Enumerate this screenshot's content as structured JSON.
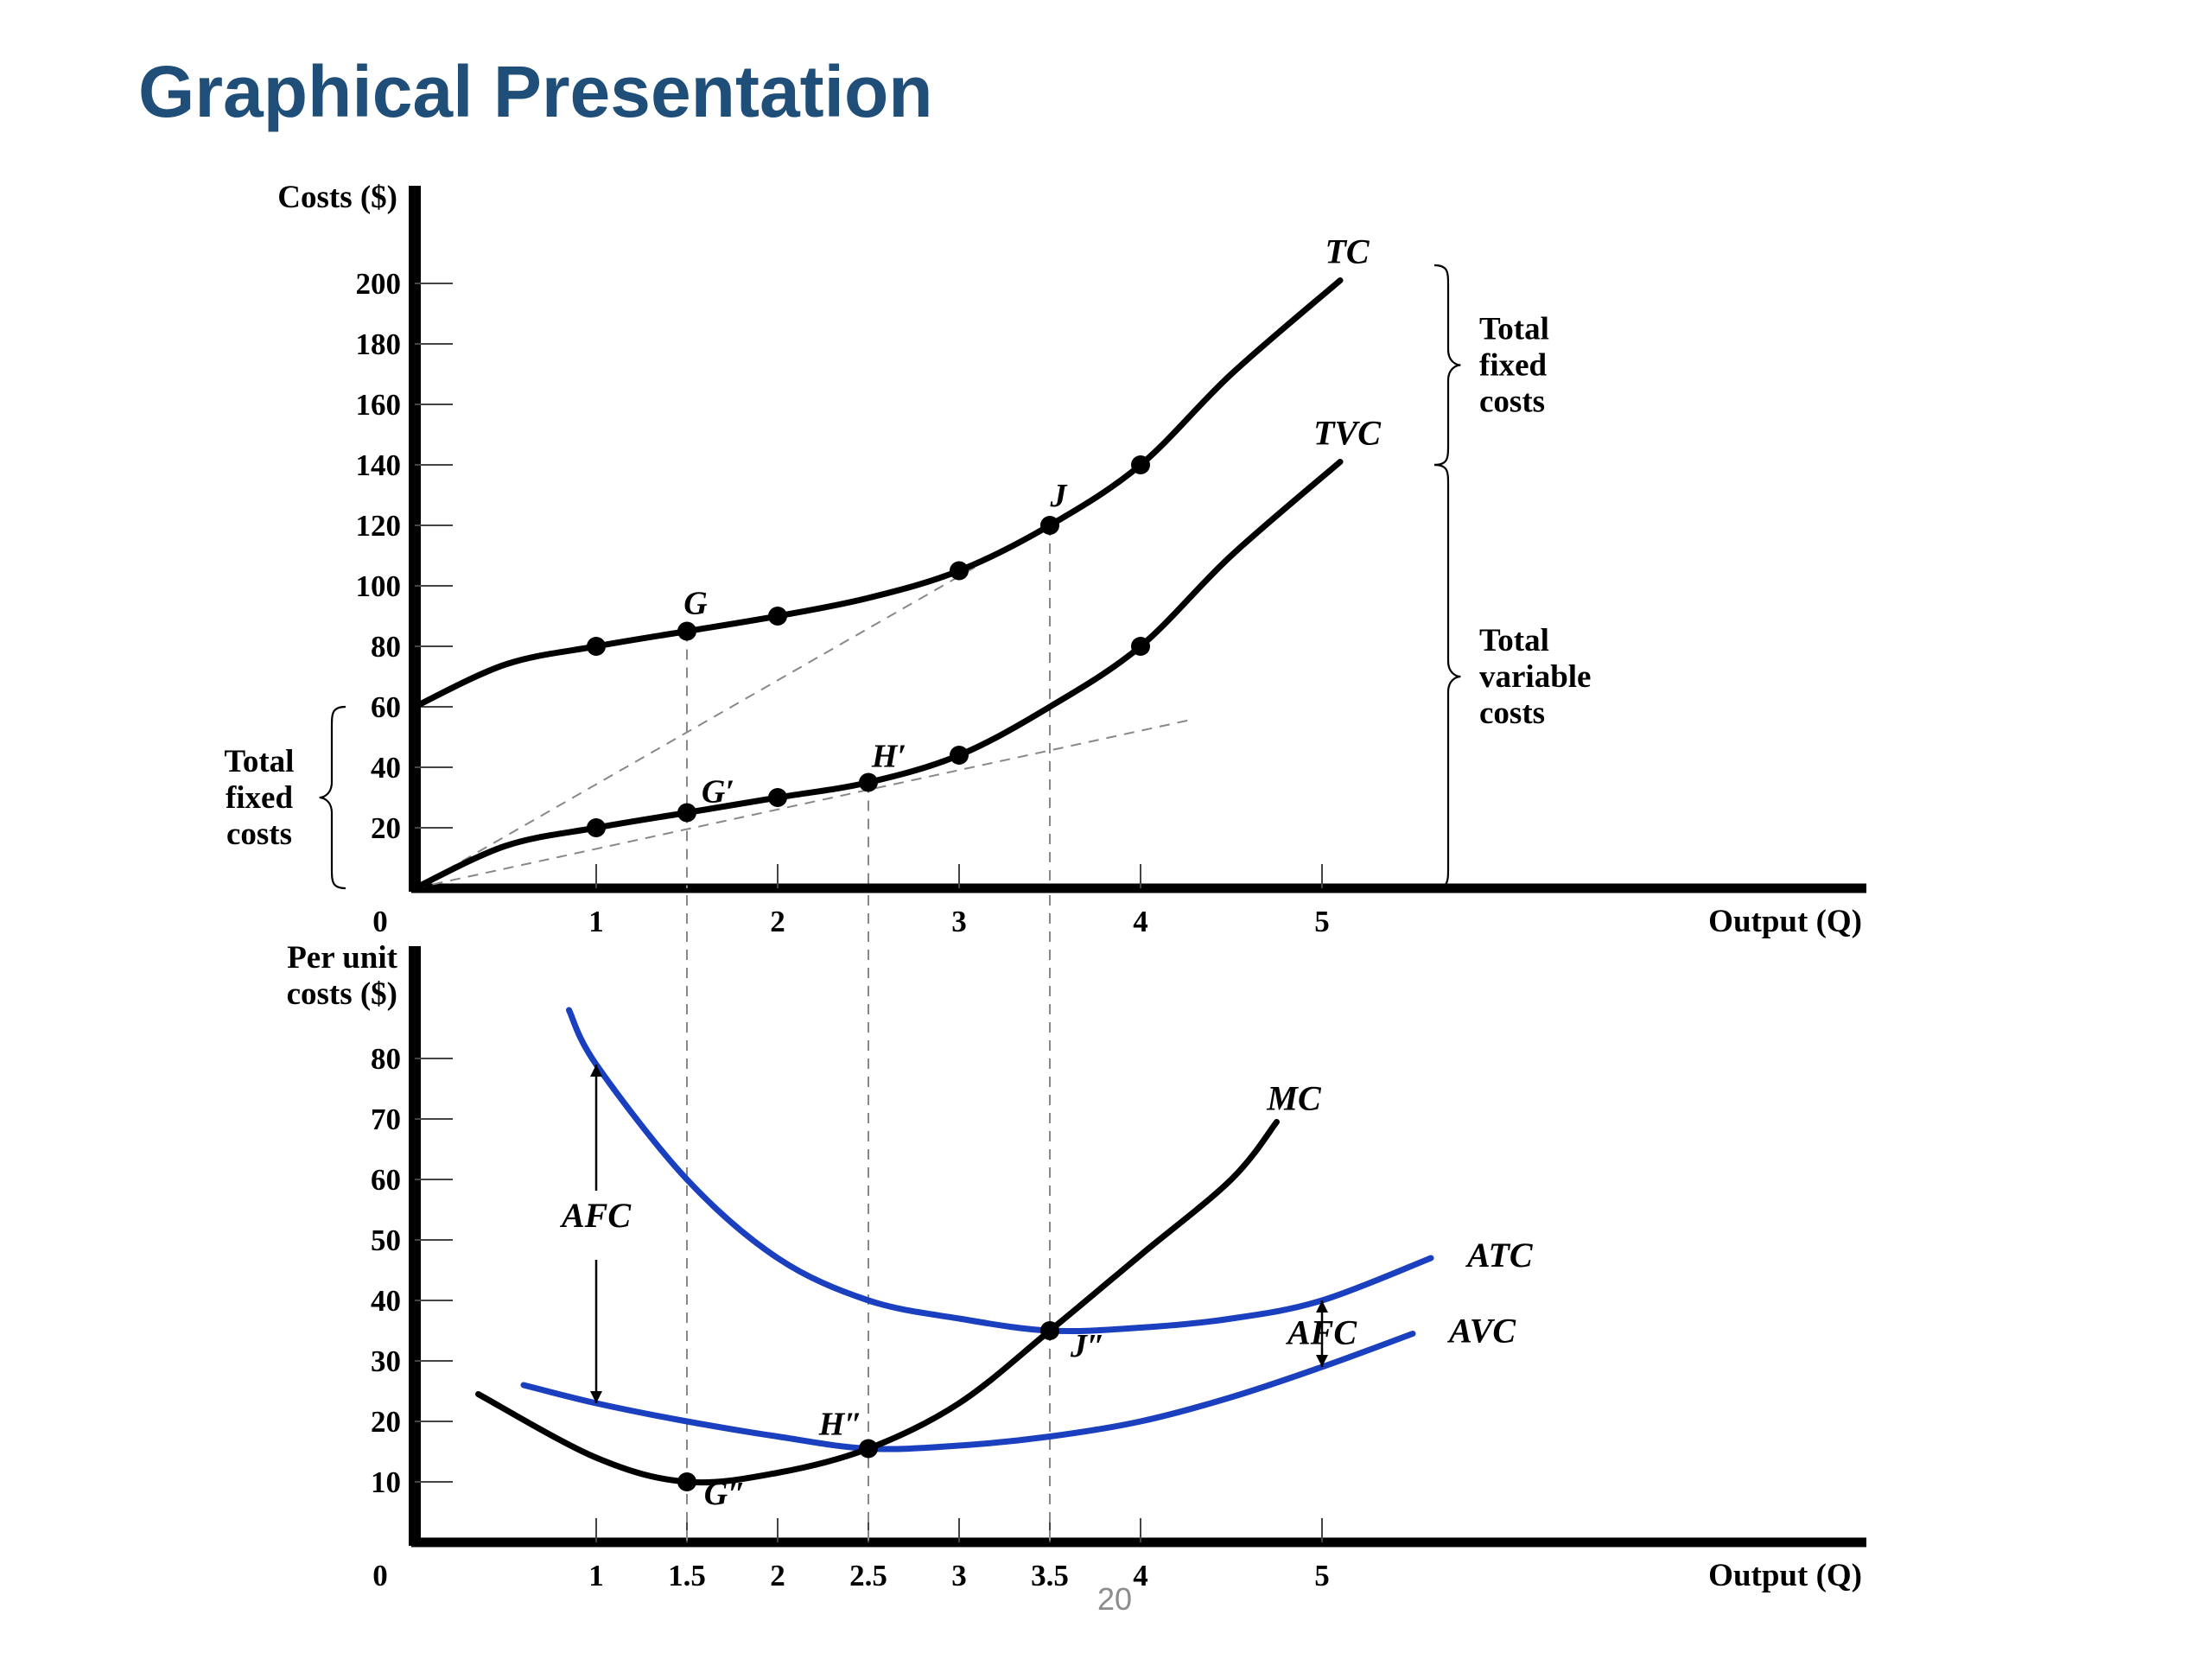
{
  "slide": {
    "title": "Graphical Presentation",
    "page_number": "20"
  },
  "colors": {
    "title": "#1F4E79",
    "black_curve": "#000000",
    "blue_curve": "#1a3fbf",
    "guide": "#888888"
  },
  "chart_data": [
    {
      "type": "line",
      "ylabel": "Costs ($)",
      "xlabel": "Output (Q)",
      "origin_label": "0",
      "xlim": [
        0,
        8
      ],
      "ylim": [
        0,
        230
      ],
      "x_ticks": [
        {
          "v": 1,
          "label": "1"
        },
        {
          "v": 2,
          "label": "2"
        },
        {
          "v": 3,
          "label": "3"
        },
        {
          "v": 4,
          "label": "4"
        },
        {
          "v": 5,
          "label": "5"
        }
      ],
      "y_ticks": [
        {
          "v": 20,
          "label": "20"
        },
        {
          "v": 40,
          "label": "40"
        },
        {
          "v": 60,
          "label": "60"
        },
        {
          "v": 80,
          "label": "80"
        },
        {
          "v": 100,
          "label": "100"
        },
        {
          "v": 120,
          "label": "120"
        },
        {
          "v": 140,
          "label": "140"
        },
        {
          "v": 160,
          "label": "160"
        },
        {
          "v": 180,
          "label": "180"
        },
        {
          "v": 200,
          "label": "200"
        }
      ],
      "series": [
        {
          "name": "TC",
          "color": "black",
          "x": [
            0,
            0.5,
            1,
            1.5,
            2,
            2.5,
            3,
            3.5,
            4,
            4.5,
            5.1
          ],
          "y": [
            60,
            74,
            80,
            85,
            90,
            96,
            105,
            120,
            140,
            170,
            201
          ],
          "markers": [
            1,
            1.5,
            2,
            3,
            3.5,
            4
          ]
        },
        {
          "name": "TVC",
          "color": "black",
          "x": [
            0,
            0.5,
            1,
            1.5,
            2,
            2.5,
            3,
            3.5,
            4,
            4.5,
            5.1
          ],
          "y": [
            0,
            14,
            20,
            25,
            30,
            35,
            44,
            60,
            80,
            110,
            141
          ],
          "markers": [
            1,
            1.5,
            2,
            2.5,
            3,
            4
          ]
        }
      ],
      "points": [
        {
          "label": "G",
          "x": 1.5,
          "y": 85
        },
        {
          "label": "J",
          "x": 3.5,
          "y": 120
        },
        {
          "label": "G′",
          "x": 1.5,
          "y": 25
        },
        {
          "label": "H′",
          "x": 2.5,
          "y": 35
        }
      ],
      "rays": [
        {
          "from": [
            0,
            0
          ],
          "to": [
            3.2,
            110
          ]
        },
        {
          "from": [
            0,
            0
          ],
          "to": [
            4.3,
            56
          ]
        }
      ],
      "braces": [
        {
          "side": "left",
          "y1": 0,
          "y2": 60,
          "lines": [
            "Total",
            "fixed",
            "costs"
          ]
        },
        {
          "side": "right",
          "y1": 140,
          "y2": 206,
          "lines": [
            "Total",
            "fixed",
            "costs"
          ]
        },
        {
          "side": "right",
          "y1": 0,
          "y2": 140,
          "lines": [
            "Total",
            "variable",
            "costs"
          ]
        }
      ]
    },
    {
      "type": "line",
      "ylabel": "Per unit costs ($)",
      "ylabel_lines": [
        "Per unit",
        "costs ($)"
      ],
      "xlabel": "Output (Q)",
      "origin_label": "0",
      "xlim": [
        0,
        8
      ],
      "ylim": [
        0,
        100
      ],
      "x_ticks": [
        {
          "v": 1,
          "label": "1"
        },
        {
          "v": 1.5,
          "label": "1.5"
        },
        {
          "v": 2,
          "label": "2"
        },
        {
          "v": 2.5,
          "label": "2.5"
        },
        {
          "v": 3,
          "label": "3"
        },
        {
          "v": 3.5,
          "label": "3.5"
        },
        {
          "v": 4,
          "label": "4"
        },
        {
          "v": 5,
          "label": "5"
        }
      ],
      "y_ticks": [
        {
          "v": 10,
          "label": "10"
        },
        {
          "v": 20,
          "label": "20"
        },
        {
          "v": 30,
          "label": "30"
        },
        {
          "v": 40,
          "label": "40"
        },
        {
          "v": 50,
          "label": "50"
        },
        {
          "v": 60,
          "label": "60"
        },
        {
          "v": 70,
          "label": "70"
        },
        {
          "v": 80,
          "label": "80"
        }
      ],
      "series": [
        {
          "name": "ATC",
          "color": "blue",
          "x": [
            0.85,
            1.0,
            1.5,
            2.0,
            2.5,
            3.0,
            3.5,
            4.0,
            4.5,
            5.0,
            5.6
          ],
          "y": [
            88,
            79,
            60,
            47,
            40,
            37,
            35,
            35.5,
            37,
            40,
            47
          ]
        },
        {
          "name": "AVC",
          "color": "blue",
          "x": [
            0.6,
            1.0,
            1.5,
            2.0,
            2.5,
            3.0,
            3.5,
            4.0,
            4.5,
            5.0,
            5.5
          ],
          "y": [
            26,
            23,
            20,
            17.5,
            15.5,
            16,
            17.5,
            20,
            24,
            29,
            34.5
          ]
        },
        {
          "name": "MC",
          "color": "black",
          "x": [
            0.35,
            1.0,
            1.5,
            2.0,
            2.5,
            3.0,
            3.5,
            4.0,
            4.5,
            4.75
          ],
          "y": [
            24.5,
            14,
            10,
            11.5,
            15.5,
            23,
            35,
            47.5,
            60,
            69.5
          ]
        }
      ],
      "points": [
        {
          "label": "G″",
          "x": 1.5,
          "y": 10
        },
        {
          "label": "H″",
          "x": 2.5,
          "y": 15.5
        },
        {
          "label": "J″",
          "x": 3.5,
          "y": 35
        }
      ],
      "gap_labels": [
        {
          "label": "AFC",
          "x": 1.0,
          "y1": 23,
          "y2": 79
        },
        {
          "label": "AFC",
          "x": 5.0,
          "y1": 29,
          "y2": 40
        }
      ]
    }
  ]
}
